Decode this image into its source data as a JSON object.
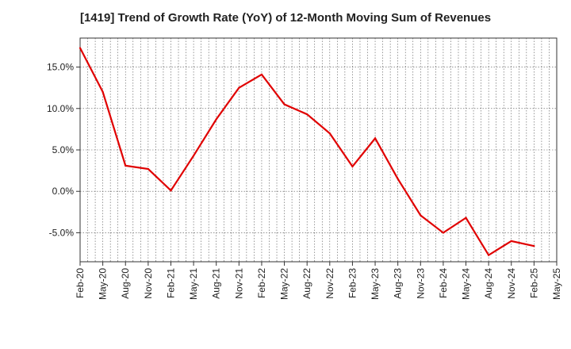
{
  "chart_data": {
    "type": "line",
    "title": "[1419]  Trend of Growth Rate (YoY) of 12-Month Moving Sum of Revenues",
    "xlabel": "",
    "ylabel": "",
    "x_tick_labels": [
      "Feb-20",
      "May-20",
      "Aug-20",
      "Nov-20",
      "Feb-21",
      "May-21",
      "Aug-21",
      "Nov-21",
      "Feb-22",
      "May-22",
      "Aug-22",
      "Nov-22",
      "Feb-23",
      "May-23",
      "Aug-23",
      "Nov-23",
      "Feb-24",
      "May-24",
      "Aug-24",
      "Nov-24",
      "Feb-25",
      "May-25"
    ],
    "y_tick_values": [
      15,
      10,
      5,
      0,
      -5
    ],
    "y_tick_labels": [
      "15.0%",
      "10.0%",
      "5.0%",
      "0.0%",
      "-5.0%"
    ],
    "ylim": [
      -8.5,
      18.5
    ],
    "grid": true,
    "series": [
      {
        "color": "#e00000",
        "x": [
          "Feb-20",
          "May-20",
          "Aug-20",
          "Nov-20",
          "Feb-21",
          "May-21",
          "Aug-21",
          "Nov-21",
          "Feb-22",
          "May-22",
          "Aug-22",
          "Nov-22",
          "Feb-23",
          "May-23",
          "Aug-23",
          "Nov-23",
          "Feb-24",
          "May-24",
          "Aug-24",
          "Nov-24",
          "Feb-25"
        ],
        "values": [
          17.3,
          12.0,
          3.1,
          2.7,
          0.1,
          4.3,
          8.7,
          12.5,
          14.1,
          10.5,
          9.3,
          7.0,
          3.0,
          6.4,
          1.5,
          -2.9,
          -5.0,
          -3.2,
          -7.7,
          -6.0,
          -6.6
        ]
      }
    ]
  }
}
